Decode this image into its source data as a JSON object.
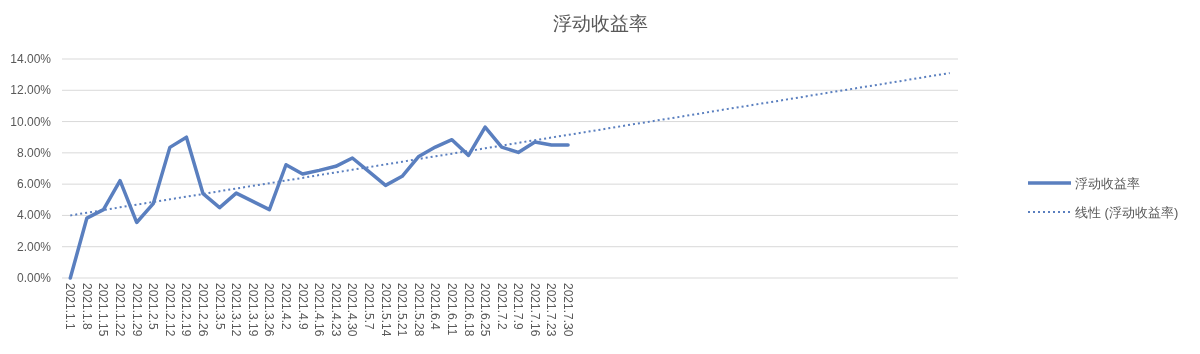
{
  "chart_data": {
    "type": "line",
    "title": "浮动收益率",
    "categories": [
      "2021.1.1",
      "2021.1.8",
      "2021.1.15",
      "2021.1.22",
      "2021.1.29",
      "2021.2.5",
      "2021.2.12",
      "2021.2.19",
      "2021.2.26",
      "2021.3.5",
      "2021.3.12",
      "2021.3.19",
      "2021.3.26",
      "2021.4.2",
      "2021.4.9",
      "2021.4.16",
      "2021.4.23",
      "2021.4.30",
      "2021.5.7",
      "2021.5.14",
      "2021.5.21",
      "2021.5.28",
      "2021.6.4",
      "2021.6.11",
      "2021.6.18",
      "2021.6.25",
      "2021.7.2",
      "2021.7.9",
      "2021.7.16",
      "2021.7.23",
      "2021.7.30",
      null,
      null,
      null,
      null,
      null,
      null,
      null,
      null,
      null,
      null,
      null,
      null,
      null,
      null,
      null,
      null,
      null,
      null,
      null,
      null,
      null,
      null,
      null
    ],
    "series": [
      {
        "name": "浮动收益率",
        "color": "#5a7fbf",
        "line_style": "solid",
        "values": [
          0,
          3.83,
          4.37,
          6.22,
          3.55,
          4.75,
          8.35,
          9.0,
          5.39,
          4.5,
          5.43,
          4.9,
          4.37,
          7.24,
          6.65,
          6.88,
          7.14,
          7.67,
          6.8,
          5.92,
          6.5,
          7.77,
          8.37,
          8.84,
          7.84,
          9.65,
          8.37,
          8.03,
          8.69,
          8.5,
          8.5,
          null,
          null,
          null,
          null,
          null,
          null,
          null,
          null,
          null,
          null,
          null,
          null,
          null,
          null,
          null,
          null,
          null,
          null,
          null,
          null,
          null,
          null,
          null
        ]
      },
      {
        "name": "线性 (浮动收益率)",
        "type": "line",
        "color": "#5a7fbf",
        "line_style": "dotted",
        "values": [
          4.0,
          4.17,
          4.34,
          4.52,
          4.69,
          4.86,
          5.03,
          5.2,
          5.37,
          5.55,
          5.72,
          5.89,
          6.06,
          6.23,
          6.4,
          6.58,
          6.75,
          6.92,
          7.09,
          7.26,
          7.43,
          7.61,
          7.78,
          7.95,
          8.12,
          8.29,
          8.46,
          8.64,
          8.81,
          8.98,
          9.15,
          9.32,
          9.49,
          9.67,
          9.84,
          10.01,
          10.18,
          10.35,
          10.52,
          10.7,
          10.87,
          11.04,
          11.21,
          11.38,
          11.55,
          11.73,
          11.9,
          12.07,
          12.24,
          12.41,
          12.58,
          12.76,
          12.93,
          13.1
        ]
      }
    ],
    "ylim": [
      0,
      14
    ],
    "yticks": [
      {
        "value": 0,
        "label": "0.00%"
      },
      {
        "value": 2,
        "label": "2.00%"
      },
      {
        "value": 4,
        "label": "4.00%"
      },
      {
        "value": 6,
        "label": "6.00%"
      },
      {
        "value": 8,
        "label": "8.00%"
      },
      {
        "value": 10,
        "label": "10.00%"
      },
      {
        "value": 12,
        "label": "12.00%"
      },
      {
        "value": 14,
        "label": "14.00%"
      }
    ],
    "grid": "y",
    "legend": "right"
  }
}
